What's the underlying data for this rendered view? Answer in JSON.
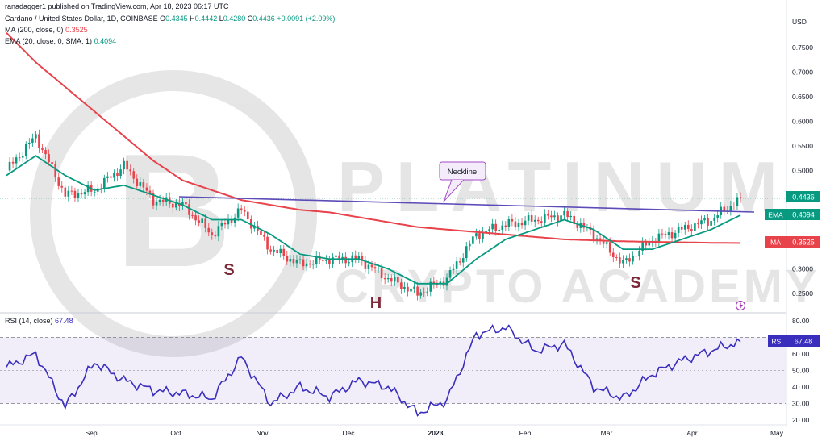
{
  "header": {
    "publisher": "ranadagger1 published on TradingView.com, Apr 18, 2023 06:17 UTC",
    "symbol": "Cardano / United States Dollar, 1D, COINBASE",
    "o_label": "O",
    "o": "0.4345",
    "h_label": "H",
    "h": "0.4442",
    "l_label": "L",
    "l": "0.4280",
    "c_label": "C",
    "c": "0.4436",
    "change": "+0.0091 (+2.09%)",
    "ma_legend": "MA (200, close, 0)",
    "ma_value": "0.3525",
    "ema_legend": "EMA (20, close, 0, SMA, 1)",
    "ema_value": "0.4094",
    "rsi_legend": "RSI (14, close)",
    "rsi_value": "67.48"
  },
  "price_axis": {
    "currency": "USD",
    "ticks": [
      "0.7500",
      "0.7000",
      "0.6500",
      "0.6000",
      "0.5500",
      "0.5000",
      "0.4500",
      "0.4000",
      "0.3500",
      "0.3000",
      "0.2500"
    ],
    "last_price": "0.4436",
    "ema_tag": "EMA",
    "ema_price": "0.4094",
    "ma_tag": "MA",
    "ma_price": "0.3525"
  },
  "rsi_axis": {
    "ticks": [
      "80.00",
      "70.00",
      "60.00",
      "50.00",
      "40.00",
      "30.00",
      "20.00"
    ],
    "tag": "RSI",
    "value": "67.48"
  },
  "time_axis": [
    "Sep",
    "Oct",
    "Nov",
    "Dec",
    "2023",
    "Feb",
    "Mar",
    "Apr",
    "May"
  ],
  "annotations": {
    "neckline": "Neckline",
    "left_shoulder": "S",
    "head": "H",
    "right_shoulder": "S"
  },
  "watermark": {
    "line1": "PLATINUM",
    "line2": "CRYPTO ACADEMY"
  },
  "colors": {
    "ma": "#e8424b",
    "ema": "#089981",
    "rsi": "#3a2ebc",
    "neckline": "#5c4bb8",
    "up": "#089981",
    "down": "#e8424b",
    "shoulder_text": "#7c2a3a",
    "note_border": "#a34bc8"
  },
  "chart_data": {
    "type": "line",
    "price_series": {
      "x": [
        "Aug 10",
        "Aug 20",
        "Aug 30",
        "Sep 10",
        "Sep 20",
        "Sep 30",
        "Oct 10",
        "Oct 20",
        "Oct 30",
        "Nov 10",
        "Nov 20",
        "Nov 30",
        "Dec 10",
        "Dec 20",
        "Dec 31",
        "Jan 10",
        "Jan 20",
        "Jan 31",
        "Feb 10",
        "Feb 20",
        "Feb 28",
        "Mar 10",
        "Mar 20",
        "Mar 31",
        "Apr 10",
        "Apr 17"
      ],
      "close": [
        0.5,
        0.57,
        0.45,
        0.46,
        0.51,
        0.44,
        0.43,
        0.37,
        0.42,
        0.34,
        0.31,
        0.32,
        0.32,
        0.28,
        0.25,
        0.28,
        0.37,
        0.39,
        0.4,
        0.41,
        0.37,
        0.31,
        0.36,
        0.38,
        0.4,
        0.4436
      ]
    },
    "series": [
      {
        "name": "MA (200, close, 0)",
        "values": [
          0.78,
          0.72,
          0.67,
          0.62,
          0.57,
          0.52,
          0.48,
          0.46,
          0.44,
          0.43,
          0.42,
          0.415,
          0.405,
          0.395,
          0.385,
          0.38,
          0.375,
          0.37,
          0.365,
          0.36,
          0.358,
          0.356,
          0.355,
          0.354,
          0.353,
          0.3525
        ]
      },
      {
        "name": "EMA (20, close, 0, SMA, 1)",
        "values": [
          0.49,
          0.53,
          0.49,
          0.46,
          0.47,
          0.45,
          0.43,
          0.4,
          0.4,
          0.37,
          0.33,
          0.32,
          0.32,
          0.3,
          0.27,
          0.27,
          0.32,
          0.36,
          0.38,
          0.4,
          0.38,
          0.34,
          0.34,
          0.36,
          0.38,
          0.4094
        ]
      }
    ],
    "rsi": {
      "name": "RSI (14, close)",
      "values": [
        52,
        60,
        28,
        55,
        44,
        38,
        36,
        33,
        58,
        30,
        40,
        34,
        44,
        40,
        24,
        32,
        72,
        76,
        62,
        66,
        40,
        33,
        48,
        56,
        62,
        67.48
      ],
      "levels": [
        70,
        30
      ]
    },
    "ylim": [
      0.23,
      0.79
    ],
    "rsi_ylim": [
      18,
      82
    ]
  }
}
